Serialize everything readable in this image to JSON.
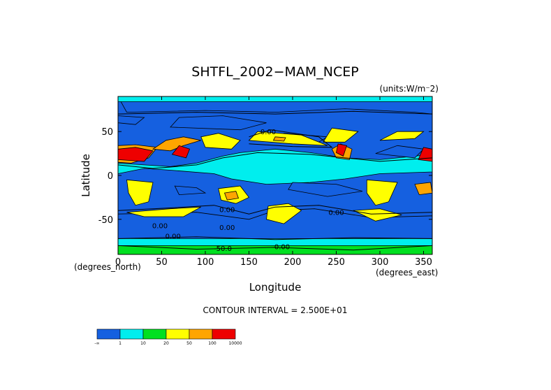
{
  "chart_data": {
    "type": "heatmap",
    "title": "SHTFL_2002−MAM_NCEP",
    "units": "(units:W/m⁻2)",
    "xlabel": "Longitude",
    "ylabel": "Latitude",
    "x_unit_label": "(degrees_east)",
    "y_unit_label": "(degrees_north)",
    "xlim": [
      0,
      360
    ],
    "ylim": [
      -90,
      90
    ],
    "x_ticks": [
      0,
      50,
      100,
      150,
      200,
      250,
      300,
      350
    ],
    "y_ticks": [
      -50,
      0,
      50
    ],
    "contour_interval_text": "CONTOUR INTERVAL = 2.500E+01",
    "contour_labels": [
      {
        "text": "0.00",
        "lon": 172,
        "lat": 47
      },
      {
        "text": "0.00",
        "lon": 125,
        "lat": -42
      },
      {
        "text": "0.00",
        "lon": 48,
        "lat": -60
      },
      {
        "text": "0.00",
        "lon": 250,
        "lat": -45
      },
      {
        "text": "0.00",
        "lon": 63,
        "lat": -72
      },
      {
        "text": "0.00",
        "lon": 125,
        "lat": -62
      },
      {
        "text": "-50.0",
        "lon": 120,
        "lat": -86
      },
      {
        "text": "0.00",
        "lon": 188,
        "lat": -84
      }
    ],
    "legend": {
      "bins": [
        "-∞–1",
        "1–10",
        "10–20",
        "20–50",
        "50–100",
        "100–10000"
      ],
      "colors": [
        "#1560e0",
        "#00eeee",
        "#00e020",
        "#ffff00",
        "#ffa500",
        "#ee0000"
      ],
      "tick_labels": [
        "-∞",
        "1",
        "10",
        "20",
        "50",
        "100",
        "10000"
      ]
    },
    "regions": [
      {
        "bin": 0,
        "poly": [
          [
            0,
            -44
          ],
          [
            90,
            -42
          ],
          [
            150,
            -50
          ],
          [
            180,
            -40
          ],
          [
            225,
            -38
          ],
          [
            290,
            -48
          ],
          [
            360,
            -46
          ],
          [
            360,
            -72
          ],
          [
            0,
            -72
          ]
        ]
      },
      {
        "bin": 1,
        "poly": [
          [
            0,
            -72
          ],
          [
            360,
            -72
          ],
          [
            360,
            -90
          ],
          [
            0,
            -90
          ]
        ]
      },
      {
        "bin": 2,
        "poly": [
          [
            0,
            -90
          ],
          [
            360,
            -90
          ],
          [
            360,
            -80
          ],
          [
            0,
            -80
          ]
        ]
      },
      {
        "bin": 3,
        "poly": [
          [
            10,
            -42
          ],
          [
            60,
            -38
          ],
          [
            95,
            -36
          ],
          [
            75,
            -47
          ],
          [
            30,
            -47
          ]
        ]
      },
      {
        "bin": 3,
        "poly": [
          [
            172,
            -35
          ],
          [
            195,
            -32
          ],
          [
            210,
            -40
          ],
          [
            190,
            -55
          ],
          [
            170,
            -50
          ]
        ]
      },
      {
        "bin": 3,
        "poly": [
          [
            270,
            -40
          ],
          [
            300,
            -38
          ],
          [
            325,
            -45
          ],
          [
            295,
            -52
          ]
        ]
      },
      {
        "bin": 1,
        "poly": [
          [
            0,
            2
          ],
          [
            30,
            8
          ],
          [
            60,
            6
          ],
          [
            110,
            2
          ],
          [
            130,
            -4
          ],
          [
            170,
            -10
          ],
          [
            220,
            -8
          ],
          [
            260,
            -4
          ],
          [
            300,
            2
          ],
          [
            360,
            4
          ],
          [
            360,
            24
          ],
          [
            300,
            18
          ],
          [
            260,
            20
          ],
          [
            220,
            26
          ],
          [
            180,
            30
          ],
          [
            140,
            26
          ],
          [
            120,
            22
          ],
          [
            90,
            14
          ],
          [
            60,
            10
          ],
          [
            30,
            12
          ],
          [
            0,
            14
          ]
        ]
      },
      {
        "bin": 0,
        "poly": [
          [
            200,
            -8
          ],
          [
            250,
            -10
          ],
          [
            280,
            -18
          ],
          [
            240,
            -24
          ],
          [
            195,
            -16
          ]
        ]
      },
      {
        "bin": 0,
        "poly": [
          [
            65,
            -12
          ],
          [
            90,
            -14
          ],
          [
            100,
            -20
          ],
          [
            70,
            -22
          ]
        ]
      },
      {
        "bin": 0,
        "poly": [
          [
            295,
            25
          ],
          [
            340,
            20
          ],
          [
            350,
            30
          ],
          [
            320,
            34
          ]
        ]
      },
      {
        "bin": 0,
        "poly": [
          [
            180,
            40
          ],
          [
            230,
            38
          ],
          [
            240,
            44
          ],
          [
            190,
            48
          ]
        ]
      },
      {
        "bin": 0,
        "poly": [
          [
            10,
            72
          ],
          [
            100,
            74
          ],
          [
            180,
            72
          ],
          [
            260,
            76
          ],
          [
            340,
            72
          ],
          [
            360,
            70
          ],
          [
            360,
            90
          ],
          [
            0,
            90
          ]
        ]
      },
      {
        "bin": 0,
        "poly": [
          [
            0,
            60
          ],
          [
            20,
            58
          ],
          [
            30,
            66
          ],
          [
            0,
            68
          ]
        ]
      },
      {
        "bin": 0,
        "poly": [
          [
            60,
            55
          ],
          [
            140,
            52
          ],
          [
            170,
            60
          ],
          [
            120,
            68
          ],
          [
            70,
            66
          ]
        ]
      },
      {
        "bin": 1,
        "poly": [
          [
            0,
            90
          ],
          [
            360,
            90
          ],
          [
            360,
            84
          ],
          [
            0,
            84
          ]
        ]
      },
      {
        "bin": 3,
        "poly": [
          [
            150,
            40
          ],
          [
            200,
            36
          ],
          [
            240,
            34
          ],
          [
            210,
            46
          ],
          [
            160,
            50
          ]
        ]
      },
      {
        "bin": 4,
        "poly": [
          [
            178,
            40
          ],
          [
            190,
            39
          ],
          [
            192,
            43
          ],
          [
            180,
            44
          ]
        ]
      },
      {
        "bin": 3,
        "poly": [
          [
            300,
            40
          ],
          [
            340,
            42
          ],
          [
            350,
            50
          ],
          [
            320,
            50
          ]
        ]
      },
      {
        "bin": 4,
        "poly": [
          [
            0,
            15
          ],
          [
            15,
            14
          ],
          [
            35,
            20
          ],
          [
            45,
            32
          ],
          [
            20,
            35
          ],
          [
            0,
            34
          ]
        ]
      },
      {
        "bin": 5,
        "poly": [
          [
            0,
            18
          ],
          [
            30,
            16
          ],
          [
            40,
            28
          ],
          [
            20,
            32
          ],
          [
            0,
            30
          ]
        ]
      },
      {
        "bin": 4,
        "poly": [
          [
            40,
            30
          ],
          [
            60,
            28
          ],
          [
            75,
            34
          ],
          [
            95,
            40
          ],
          [
            75,
            44
          ],
          [
            55,
            40
          ]
        ]
      },
      {
        "bin": 5,
        "poly": [
          [
            62,
            24
          ],
          [
            78,
            20
          ],
          [
            82,
            30
          ],
          [
            70,
            34
          ]
        ]
      },
      {
        "bin": 3,
        "poly": [
          [
            100,
            32
          ],
          [
            130,
            30
          ],
          [
            140,
            40
          ],
          [
            115,
            48
          ],
          [
            95,
            44
          ]
        ]
      },
      {
        "bin": 3,
        "poly": [
          [
            10,
            -5
          ],
          [
            40,
            -8
          ],
          [
            35,
            -30
          ],
          [
            20,
            -34
          ],
          [
            12,
            -20
          ]
        ]
      },
      {
        "bin": 3,
        "poly": [
          [
            115,
            -15
          ],
          [
            140,
            -12
          ],
          [
            150,
            -25
          ],
          [
            135,
            -32
          ],
          [
            118,
            -28
          ]
        ]
      },
      {
        "bin": 4,
        "poly": [
          [
            122,
            -20
          ],
          [
            135,
            -18
          ],
          [
            138,
            -26
          ],
          [
            125,
            -28
          ]
        ]
      },
      {
        "bin": 3,
        "poly": [
          [
            285,
            -5
          ],
          [
            320,
            -8
          ],
          [
            310,
            -30
          ],
          [
            295,
            -34
          ],
          [
            285,
            -20
          ]
        ]
      },
      {
        "bin": 4,
        "poly": [
          [
            250,
            20
          ],
          [
            265,
            18
          ],
          [
            268,
            30
          ],
          [
            255,
            36
          ],
          [
            245,
            30
          ]
        ]
      },
      {
        "bin": 5,
        "poly": [
          [
            250,
            26
          ],
          [
            258,
            22
          ],
          [
            262,
            34
          ],
          [
            252,
            36
          ]
        ]
      },
      {
        "bin": 3,
        "poly": [
          [
            235,
            38
          ],
          [
            260,
            38
          ],
          [
            275,
            50
          ],
          [
            245,
            54
          ]
        ]
      },
      {
        "bin": 4,
        "poly": [
          [
            340,
            -10
          ],
          [
            358,
            -8
          ],
          [
            360,
            -20
          ],
          [
            345,
            -22
          ]
        ]
      },
      {
        "bin": 5,
        "poly": [
          [
            344,
            18
          ],
          [
            360,
            16
          ],
          [
            360,
            30
          ],
          [
            350,
            32
          ]
        ]
      }
    ],
    "contours": [
      {
        "value": 0,
        "points": [
          [
            0,
            -40
          ],
          [
            60,
            -37
          ],
          [
            110,
            -34
          ],
          [
            150,
            -44
          ],
          [
            180,
            -36
          ],
          [
            230,
            -34
          ],
          [
            290,
            -44
          ],
          [
            360,
            -42
          ]
        ]
      },
      {
        "value": 0,
        "points": [
          [
            0,
            -72
          ],
          [
            90,
            -70
          ],
          [
            180,
            -73
          ],
          [
            270,
            -71
          ],
          [
            360,
            -72
          ]
        ]
      },
      {
        "value": 0,
        "points": [
          [
            0,
            70
          ],
          [
            90,
            72
          ],
          [
            180,
            70
          ],
          [
            270,
            73
          ],
          [
            360,
            70
          ]
        ]
      },
      {
        "value": 0,
        "points": [
          [
            150,
            36
          ],
          [
            200,
            33
          ],
          [
            245,
            32
          ],
          [
            230,
            44
          ],
          [
            175,
            52
          ],
          [
            150,
            44
          ]
        ]
      },
      {
        "value": 0,
        "points": [
          [
            0,
            12
          ],
          [
            40,
            8
          ],
          [
            90,
            12
          ],
          [
            120,
            20
          ],
          [
            160,
            26
          ],
          [
            220,
            24
          ],
          [
            300,
            16
          ],
          [
            360,
            20
          ]
        ]
      },
      {
        "value": -50,
        "points": [
          [
            0,
            -80
          ],
          [
            90,
            -84
          ],
          [
            180,
            -82
          ],
          [
            270,
            -85
          ],
          [
            360,
            -80
          ]
        ]
      }
    ]
  }
}
